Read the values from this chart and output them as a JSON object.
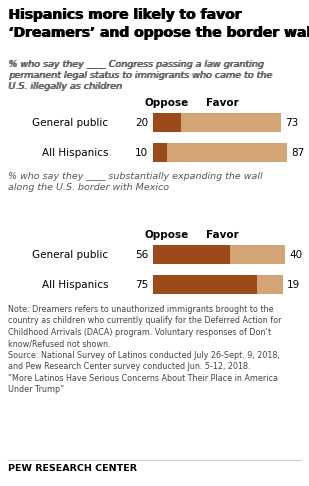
{
  "title": "Hispanics more likely to favor\n‘Dreamers’ and oppose the border wall",
  "section1_subtitle": "% who say they ____ Congress passing a law granting\npermanent legal status to immigrants who came to the\nU.S. illegally as children",
  "section2_subtitle": "% who say they ____ substantially expanding the wall\nalong the U.S. border with Mexico",
  "categories": [
    "General public",
    "All Hispanics"
  ],
  "section1_oppose": [
    20,
    10
  ],
  "section1_favor": [
    73,
    87
  ],
  "section2_oppose": [
    56,
    75
  ],
  "section2_favor": [
    40,
    19
  ],
  "color_oppose": "#9C4A1A",
  "color_favor": "#D4A574",
  "note_text": "Note: Dreamers refers to unauthorized immigrants brought to the\ncountry as children who currently qualify for the Deferred Action for\nChildhood Arrivals (DACA) program. Voluntary responses of Don’t\nknow/Refused not shown.\nSource: National Survey of Latinos conducted July 26-Sept. 9, 2018,\nand Pew Research Center survey conducted Jun. 5-12, 2018.\n“More Latinos Have Serious Concerns About Their Place in America\nUnder Trump”",
  "pew_label": "PEW RESEARCH CENTER",
  "bg_color": "#FFFFFF",
  "title_fontsize": 10,
  "subtitle_fontsize": 6.8,
  "label_fontsize": 7.5,
  "note_fontsize": 5.8,
  "pew_fontsize": 6.8
}
